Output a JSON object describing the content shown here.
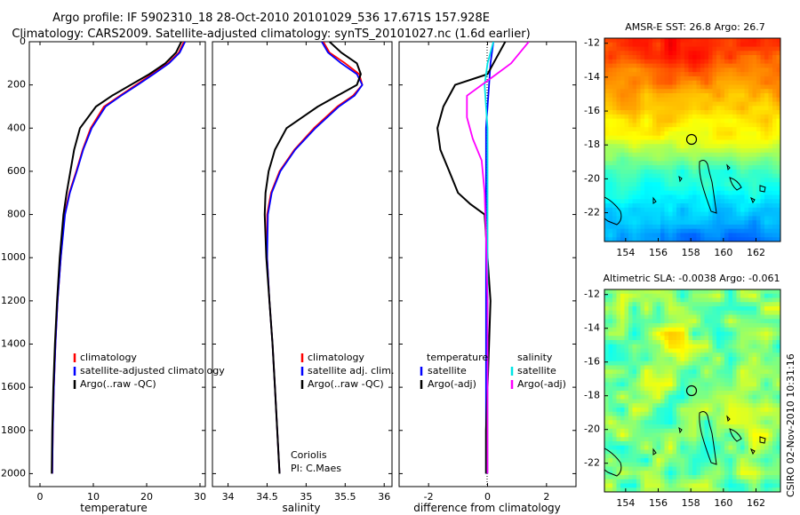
{
  "title": {
    "line1": "Argo profile: IF 5902310_18 28-Oct-2010 20101029_536 17.671S 157.928E",
    "line2": "Climatology: CARS2009. Satellite-adjusted climatology: synTS_20101027.nc (1.6d earlier)"
  },
  "footer_stamp": "CSIRO 02-Nov-2010 10:31:16",
  "colors": {
    "climatology": "#ff0000",
    "satellite": "#0000ff",
    "argo": "#000000",
    "sat_diff": "#00e5e5",
    "argo_diff": "#ff00ff"
  },
  "chart_data": [
    {
      "id": "temperature",
      "type": "line",
      "xlabel": "temperature",
      "ylabel": "",
      "xlim": [
        -2,
        31
      ],
      "ylim": [
        2060,
        0
      ],
      "xticks": [
        0,
        10,
        20,
        30
      ],
      "yticks": [
        0,
        200,
        400,
        600,
        800,
        1000,
        1200,
        1400,
        1600,
        1800,
        2000
      ],
      "series": [
        {
          "name": "climatology",
          "color": "#ff0000",
          "x": [
            27.0,
            26.0,
            24.0,
            21.0,
            18.0,
            15.0,
            12.0,
            9.5,
            8.0,
            6.8,
            5.5,
            4.6,
            3.9,
            3.3,
            2.9,
            2.6,
            2.4,
            2.3
          ],
          "y": [
            0,
            50,
            100,
            150,
            200,
            250,
            300,
            400,
            500,
            600,
            700,
            800,
            1000,
            1200,
            1400,
            1600,
            1800,
            2000
          ]
        },
        {
          "name": "satellite-adjusted climatology",
          "color": "#0000ff",
          "x": [
            27.2,
            26.2,
            24.2,
            21.3,
            18.3,
            15.2,
            12.3,
            9.7,
            8.1,
            6.9,
            5.6,
            4.7,
            3.9,
            3.3,
            2.9,
            2.6,
            2.4,
            2.3
          ],
          "y": [
            0,
            50,
            100,
            150,
            200,
            250,
            300,
            400,
            500,
            600,
            700,
            800,
            1000,
            1200,
            1400,
            1600,
            1800,
            2000
          ]
        },
        {
          "name": "Argo(..raw -QC)",
          "color": "#000000",
          "x": [
            26.5,
            25.5,
            23.5,
            20.5,
            17.0,
            13.5,
            10.5,
            7.5,
            6.4,
            5.7,
            5.0,
            4.4,
            3.7,
            3.2,
            2.8,
            2.5,
            2.3,
            2.2
          ],
          "y": [
            0,
            50,
            100,
            150,
            200,
            250,
            300,
            400,
            500,
            600,
            700,
            800,
            1000,
            1200,
            1400,
            1600,
            1800,
            2000
          ]
        }
      ],
      "legend": [
        "climatology",
        "satellite-adjusted climatology",
        "Argo(..raw -QC)"
      ]
    },
    {
      "id": "salinity",
      "type": "line",
      "xlabel": "salinity",
      "xlim": [
        33.8,
        36.1
      ],
      "ylim": [
        2060,
        0
      ],
      "xticks": [
        34,
        34.5,
        35,
        35.5,
        36
      ],
      "yticks": [
        0,
        200,
        400,
        600,
        800,
        1000,
        1200,
        1400,
        1600,
        1800,
        2000
      ],
      "series": [
        {
          "name": "climatology",
          "color": "#ff0000",
          "x": [
            35.22,
            35.3,
            35.5,
            35.68,
            35.72,
            35.6,
            35.4,
            35.1,
            34.85,
            34.66,
            34.55,
            34.5,
            34.5,
            34.53,
            34.57,
            34.6,
            34.63,
            34.66
          ],
          "y": [
            0,
            50,
            100,
            150,
            200,
            250,
            300,
            400,
            500,
            600,
            700,
            800,
            1000,
            1200,
            1400,
            1600,
            1800,
            2000
          ]
        },
        {
          "name": "satellite adj. clim.",
          "color": "#0000ff",
          "x": [
            35.2,
            35.28,
            35.45,
            35.65,
            35.72,
            35.62,
            35.42,
            35.12,
            34.86,
            34.67,
            34.56,
            34.51,
            34.5,
            34.53,
            34.57,
            34.6,
            34.63,
            34.66
          ],
          "y": [
            0,
            50,
            100,
            150,
            200,
            250,
            300,
            400,
            500,
            600,
            700,
            800,
            1000,
            1200,
            1400,
            1600,
            1800,
            2000
          ]
        },
        {
          "name": "Argo(..raw -QC)",
          "color": "#000000",
          "x": [
            35.3,
            35.45,
            35.65,
            35.7,
            35.65,
            35.4,
            35.15,
            34.75,
            34.6,
            34.52,
            34.48,
            34.47,
            34.49,
            34.53,
            34.57,
            34.6,
            34.63,
            34.66
          ],
          "y": [
            0,
            50,
            100,
            150,
            200,
            250,
            300,
            400,
            500,
            600,
            700,
            800,
            1000,
            1200,
            1400,
            1600,
            1800,
            2000
          ]
        }
      ],
      "legend": [
        "climatology",
        "satellite adj. clim.",
        "Argo(..raw -QC)"
      ],
      "annotation": [
        "Coriolis",
        "PI: C.Maes"
      ]
    },
    {
      "id": "difference",
      "type": "line",
      "xlabel": "difference from climatology",
      "xlim": [
        -3,
        3
      ],
      "ylim": [
        2060,
        0
      ],
      "xticks": [
        -2,
        0,
        2
      ],
      "yticks": [
        0,
        200,
        400,
        600,
        800,
        1000,
        1200,
        1400,
        1600,
        1800,
        2000
      ],
      "series": [
        {
          "name": "temperature satellite",
          "color": "#0000ff",
          "x": [
            0.2,
            0.1,
            0.05,
            0.0,
            -0.05,
            -0.05,
            -0.05,
            -0.05,
            -0.05,
            -0.05,
            -0.05,
            -0.05,
            -0.05
          ],
          "y": [
            0,
            100,
            200,
            300,
            400,
            600,
            800,
            1000,
            1200,
            1400,
            1600,
            1800,
            2000
          ]
        },
        {
          "name": "temperature Argo(-adj)",
          "color": "#000000",
          "x": [
            0.6,
            0.2,
            0.0,
            -1.1,
            -1.5,
            -1.7,
            -1.6,
            -1.3,
            -1.0,
            -0.6,
            -0.1,
            0.0,
            0.1,
            0.05,
            0.0,
            -0.05,
            -0.05
          ],
          "y": [
            0,
            100,
            150,
            200,
            300,
            400,
            500,
            600,
            700,
            750,
            800,
            1000,
            1200,
            1400,
            1600,
            1800,
            2000
          ]
        },
        {
          "name": "salinity satellite",
          "color": "#00e5e5",
          "x": [
            0.2,
            0.0,
            -0.1,
            -0.05,
            0.0,
            0.0,
            0.0,
            0.0,
            0.0,
            0.0
          ],
          "y": [
            0,
            100,
            200,
            300,
            400,
            800,
            1200,
            1600,
            1800,
            2000
          ]
        },
        {
          "name": "salinity Argo(-adj)",
          "color": "#ff00ff",
          "x": [
            1.4,
            0.8,
            0.3,
            -0.7,
            -0.7,
            -0.5,
            -0.2,
            -0.1,
            -0.05,
            0.0,
            0.0,
            0.0
          ],
          "y": [
            0,
            100,
            150,
            250,
            350,
            450,
            550,
            700,
            900,
            1200,
            1600,
            2000
          ]
        }
      ],
      "legend_left": [
        "temperature",
        "satellite",
        "Argo(-adj)"
      ],
      "legend_right": [
        "salinity",
        "satellite",
        "Argo(-adj)"
      ]
    },
    {
      "id": "sst_map",
      "type": "heatmap",
      "title": "AMSR-E SST: 26.8 Argo: 26.7",
      "xlim": [
        152.7,
        163.5
      ],
      "ylim": [
        -23.7,
        -11.7
      ],
      "xticks": [
        154,
        156,
        158,
        160,
        162
      ],
      "yticks": [
        -12,
        -14,
        -16,
        -18,
        -20,
        -22
      ],
      "marker": {
        "lon": 157.928,
        "lat": -17.671
      }
    },
    {
      "id": "sla_map",
      "type": "heatmap",
      "title": "Altimetric SLA: -0.0038 Argo: -0.061",
      "xlim": [
        152.7,
        163.5
      ],
      "ylim": [
        -23.7,
        -11.7
      ],
      "xticks": [
        154,
        156,
        158,
        160,
        162
      ],
      "yticks": [
        -12,
        -14,
        -16,
        -18,
        -20,
        -22
      ],
      "marker": {
        "lon": 157.928,
        "lat": -17.671
      }
    }
  ]
}
